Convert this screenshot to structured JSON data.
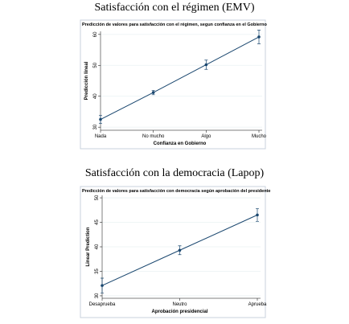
{
  "chart_data": [
    {
      "type": "line",
      "title": "Satisfacción con el régimen (EMV)",
      "subtitle": "Predicción de valores para satisfacción con el régimen, segun confianza en el Gobierno",
      "x_label": "Confianza en Gobierno",
      "y_label": "Predicción lineal",
      "categories": [
        "Nada",
        "No mucho",
        "Algo",
        "Mucho"
      ],
      "series": [
        {
          "color": "#1a476f",
          "values": [
            32.5,
            41.2,
            50.2,
            59.2
          ],
          "errors": [
            1.3,
            0.7,
            1.5,
            2.2
          ]
        }
      ],
      "ylim": [
        29,
        61
      ],
      "yticks": [
        30,
        40,
        50,
        60
      ],
      "grid": true
    },
    {
      "type": "line",
      "title": "Satisfacción con la democracia (Lapop)",
      "subtitle": "Predicción de valores para satisfacción con democracia según aprobación del presidente",
      "x_label": "Aprobación presidencial",
      "y_label": "Linear Prediction",
      "categories": [
        "Desaprueba",
        "Neutro",
        "Aprueba"
      ],
      "series": [
        {
          "color": "#1a476f",
          "values": [
            32.1,
            39.3,
            46.5
          ],
          "errors": [
            1.5,
            0.9,
            1.3
          ]
        }
      ],
      "ylim": [
        29.5,
        50.5
      ],
      "yticks": [
        30,
        35,
        40,
        45,
        50
      ],
      "grid": true
    }
  ]
}
